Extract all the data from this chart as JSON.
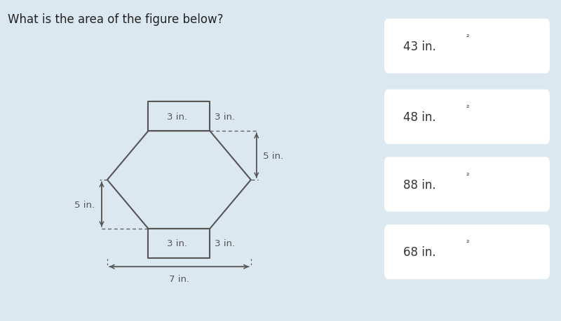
{
  "title": "What is the area of the figure below?",
  "title_fontsize": 12,
  "title_bg_color": "#c8dce8",
  "body_bg_color": "#dce8f0",
  "right_panel_color": "#2878be",
  "button_color": "#ffffff",
  "button_text_color": "#333333",
  "question_text_color": "#222222",
  "choices": [
    "43 in.²",
    "48 in.²",
    "88 in.²",
    "68 in.²"
  ],
  "fig_width": 8.0,
  "fig_height": 4.6,
  "shape_line_color": "#555555",
  "dim_line_color": "#555555",
  "dim_fontsize": 9.5
}
